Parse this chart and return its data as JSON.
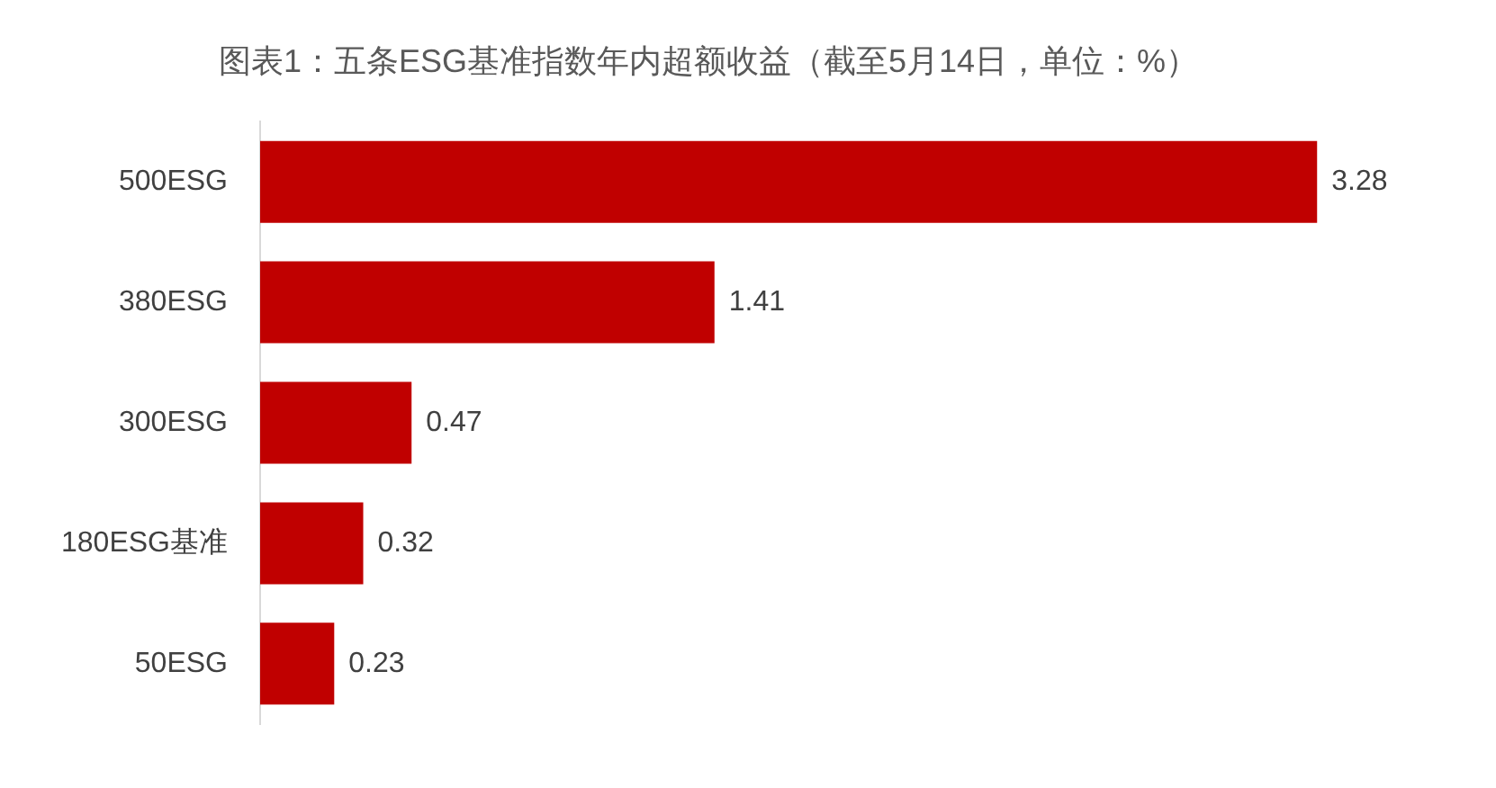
{
  "chart_data": {
    "type": "bar",
    "orientation": "horizontal",
    "title": "图表1：五条ESG基准指数年内超额收益（截至5月14日，单位：%）",
    "categories": [
      "500ESG",
      "380ESG",
      "300ESG",
      "180ESG基准",
      "50ESG"
    ],
    "values": [
      3.28,
      1.41,
      0.47,
      0.32,
      0.23
    ],
    "color": "#c00000",
    "data_labels": true,
    "grid": false,
    "legend": false
  }
}
